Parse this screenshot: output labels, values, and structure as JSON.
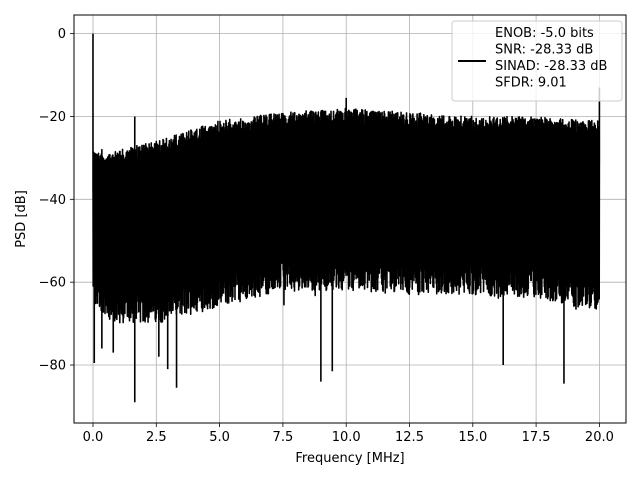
{
  "chart_data": {
    "type": "line",
    "title": "",
    "xlabel": "Frequency [MHz]",
    "ylabel": "PSD [dB]",
    "xlim": [
      -0.75,
      21.05
    ],
    "ylim": [
      -94,
      4.5
    ],
    "x_ticks": [
      0.0,
      2.5,
      5.0,
      7.5,
      10.0,
      12.5,
      15.0,
      17.5,
      20.0
    ],
    "x_tick_labels": [
      "0.0",
      "2.5",
      "5.0",
      "7.5",
      "10.0",
      "12.5",
      "15.0",
      "17.5",
      "20.0"
    ],
    "y_ticks": [
      0,
      -20,
      -40,
      -60,
      -80
    ],
    "y_tick_labels": [
      "0",
      "−20",
      "−40",
      "−60",
      "−80"
    ],
    "grid": true,
    "legend": {
      "placement": "top-right",
      "line_color": "#000000",
      "entries": [
        "ENOB: -5.0 bits",
        "SNR: -28.33 dB",
        "SINAD: -28.33 dB",
        "SFDR: 9.01"
      ]
    },
    "series": [
      {
        "color": "#000000",
        "x_range": [
          0,
          20
        ],
        "description_points": {
          "upper_envelope": [
            [
              0.1,
              -28
            ],
            [
              1.0,
              -28
            ],
            [
              2.5,
              -26
            ],
            [
              5.0,
              -21
            ],
            [
              7.5,
              -19
            ],
            [
              10.0,
              -18
            ],
            [
              12.5,
              -19
            ],
            [
              15.0,
              -20
            ],
            [
              17.5,
              -20
            ],
            [
              20.0,
              -21
            ]
          ],
          "lower_envelope": [
            [
              0.1,
              -66
            ],
            [
              1.0,
              -70
            ],
            [
              2.5,
              -70
            ],
            [
              5.0,
              -66
            ],
            [
              7.5,
              -62
            ],
            [
              10.0,
              -62
            ],
            [
              12.5,
              -63
            ],
            [
              15.0,
              -63
            ],
            [
              17.5,
              -64
            ],
            [
              20.0,
              -67
            ]
          ],
          "peaks": [
            [
              0.0,
              0
            ],
            [
              1.65,
              -20
            ],
            [
              10.0,
              -15.5
            ],
            [
              20.0,
              -13
            ]
          ],
          "dips": [
            [
              0.05,
              -79.5
            ],
            [
              0.35,
              -76
            ],
            [
              0.8,
              -77
            ],
            [
              1.65,
              -89
            ],
            [
              2.6,
              -78
            ],
            [
              2.95,
              -81
            ],
            [
              3.3,
              -85.5
            ],
            [
              9.0,
              -84
            ],
            [
              9.45,
              -81.5
            ],
            [
              16.2,
              -80
            ],
            [
              18.6,
              -84.5
            ]
          ]
        }
      }
    ]
  }
}
